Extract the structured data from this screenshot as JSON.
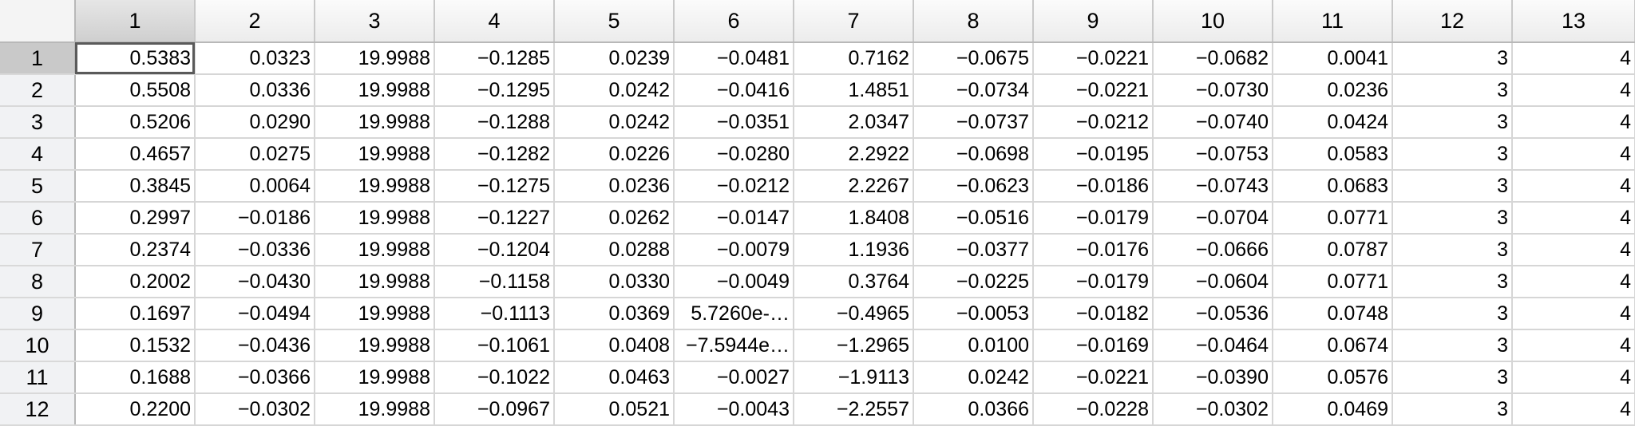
{
  "grid": {
    "column_headers": [
      "1",
      "2",
      "3",
      "4",
      "5",
      "6",
      "7",
      "8",
      "9",
      "10",
      "11",
      "12",
      "13"
    ],
    "selected_column": "1",
    "selected_row": "1",
    "active_cell": {
      "row": 1,
      "col": 1
    },
    "rows": [
      {
        "label": "1",
        "cells": [
          "0.5383",
          "0.0323",
          "19.9988",
          "−0.1285",
          "0.0239",
          "−0.0481",
          "0.7162",
          "−0.0675",
          "−0.0221",
          "−0.0682",
          "0.0041",
          "3",
          "4"
        ]
      },
      {
        "label": "2",
        "cells": [
          "0.5508",
          "0.0336",
          "19.9988",
          "−0.1295",
          "0.0242",
          "−0.0416",
          "1.4851",
          "−0.0734",
          "−0.0221",
          "−0.0730",
          "0.0236",
          "3",
          "4"
        ]
      },
      {
        "label": "3",
        "cells": [
          "0.5206",
          "0.0290",
          "19.9988",
          "−0.1288",
          "0.0242",
          "−0.0351",
          "2.0347",
          "−0.0737",
          "−0.0212",
          "−0.0740",
          "0.0424",
          "3",
          "4"
        ]
      },
      {
        "label": "4",
        "cells": [
          "0.4657",
          "0.0275",
          "19.9988",
          "−0.1282",
          "0.0226",
          "−0.0280",
          "2.2922",
          "−0.0698",
          "−0.0195",
          "−0.0753",
          "0.0583",
          "3",
          "4"
        ]
      },
      {
        "label": "5",
        "cells": [
          "0.3845",
          "0.0064",
          "19.9988",
          "−0.1275",
          "0.0236",
          "−0.0212",
          "2.2267",
          "−0.0623",
          "−0.0186",
          "−0.0743",
          "0.0683",
          "3",
          "4"
        ]
      },
      {
        "label": "6",
        "cells": [
          "0.2997",
          "−0.0186",
          "19.9988",
          "−0.1227",
          "0.0262",
          "−0.0147",
          "1.8408",
          "−0.0516",
          "−0.0179",
          "−0.0704",
          "0.0771",
          "3",
          "4"
        ]
      },
      {
        "label": "7",
        "cells": [
          "0.2374",
          "−0.0336",
          "19.9988",
          "−0.1204",
          "0.0288",
          "−0.0079",
          "1.1936",
          "−0.0377",
          "−0.0176",
          "−0.0666",
          "0.0787",
          "3",
          "4"
        ]
      },
      {
        "label": "8",
        "cells": [
          "0.2002",
          "−0.0430",
          "19.9988",
          "−0.1158",
          "0.0330",
          "−0.0049",
          "0.3764",
          "−0.0225",
          "−0.0179",
          "−0.0604",
          "0.0771",
          "3",
          "4"
        ]
      },
      {
        "label": "9",
        "cells": [
          "0.1697",
          "−0.0494",
          "19.9988",
          "−0.1113",
          "0.0369",
          "5.7260e-…",
          "−0.4965",
          "−0.0053",
          "−0.0182",
          "−0.0536",
          "0.0748",
          "3",
          "4"
        ]
      },
      {
        "label": "10",
        "cells": [
          "0.1532",
          "−0.0436",
          "19.9988",
          "−0.1061",
          "0.0408",
          "−7.5944e…",
          "−1.2965",
          "0.0100",
          "−0.0169",
          "−0.0464",
          "0.0674",
          "3",
          "4"
        ]
      },
      {
        "label": "11",
        "cells": [
          "0.1688",
          "−0.0366",
          "19.9988",
          "−0.1022",
          "0.0463",
          "−0.0027",
          "−1.9113",
          "0.0242",
          "−0.0221",
          "−0.0390",
          "0.0576",
          "3",
          "4"
        ]
      },
      {
        "label": "12",
        "cells": [
          "0.2200",
          "−0.0302",
          "19.9988",
          "−0.0967",
          "0.0521",
          "−0.0043",
          "−2.2557",
          "0.0366",
          "−0.0228",
          "−0.0302",
          "0.0469",
          "3",
          "4"
        ]
      }
    ]
  }
}
